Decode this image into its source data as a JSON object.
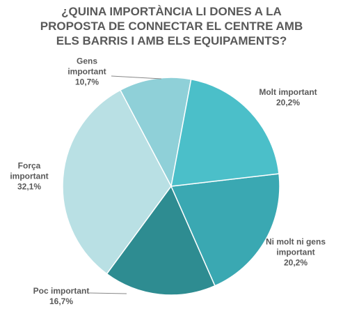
{
  "chart_data": {
    "type": "pie",
    "title": [
      "¿QUINA IMPORTÀNCIA LI DONES A LA",
      "PROPOSTA DE CONNECTAR EL CENTRE AMB",
      "ELS BARRIS I AMB ELS EQUIPAMENTS?"
    ],
    "categories": [
      "Molt important",
      "Ni molt ni gens important",
      "Poc important",
      "Força important",
      "Gens important"
    ],
    "values": [
      20.2,
      20.2,
      16.7,
      32.1,
      10.7
    ],
    "value_labels": [
      "20,2%",
      "20,2%",
      "16,7%",
      "32,1%",
      "10,7%"
    ],
    "colors": [
      "#4bbfc9",
      "#3aa8b2",
      "#2e8c91",
      "#b9e0e4",
      "#8fd0d8"
    ]
  }
}
